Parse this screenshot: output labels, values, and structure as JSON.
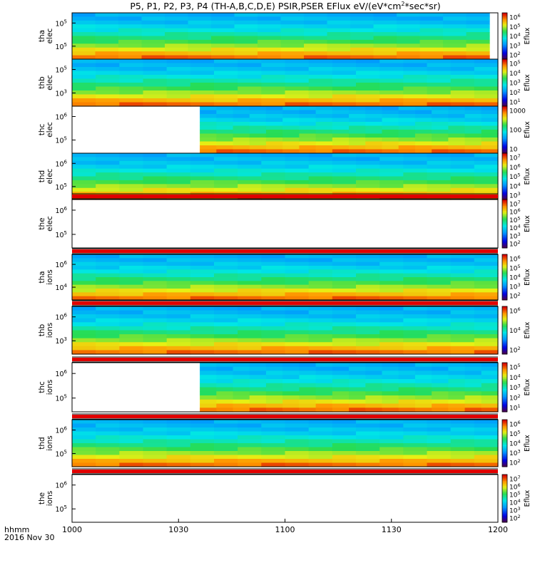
{
  "title": {
    "prefix": "P5, P1, P2, P3, P4 (TH-A,B,C,D,E) PSIR,PSER EFlux eV/(eV*cm",
    "sup": "2",
    "suffix": "*sec*sr)"
  },
  "time_label": "hhmm",
  "date_label": "2016 Nov 30",
  "chart_data": {
    "type": "heatmap",
    "x_ticks": [
      "1000",
      "1030",
      "1100",
      "1130",
      "1200"
    ],
    "x_range": [
      "10:00",
      "12:00"
    ],
    "colorbar_title": "Eflux",
    "panels": [
      {
        "name": "tha elec",
        "ylabel_top": "tha",
        "ylabel_bottom": "elec",
        "yticks": [
          {
            "base": "10",
            "exp": "5"
          },
          {
            "base": "10",
            "exp": "5"
          }
        ],
        "cbar_ticks": [
          "10",
          "10",
          "10",
          "10",
          "10"
        ],
        "cbar_exps": [
          "6",
          "5",
          "4",
          "3",
          "2"
        ],
        "cbar_plain": [],
        "coverage": [
          0.0,
          0.98
        ],
        "indicator_bar": false,
        "colorbar_palette": "rainbow"
      },
      {
        "name": "thb elec",
        "ylabel_top": "thb",
        "ylabel_bottom": "elec",
        "yticks": [
          {
            "base": "10",
            "exp": "5"
          },
          {
            "base": "10",
            "exp": "3"
          }
        ],
        "cbar_ticks": [
          "10",
          "10",
          "10",
          "10",
          "10"
        ],
        "cbar_exps": [
          "5",
          "4",
          "3",
          "2",
          "1"
        ],
        "cbar_plain": [],
        "coverage": [
          0.0,
          1.0
        ],
        "indicator_bar": false,
        "colorbar_palette": "rainbow"
      },
      {
        "name": "thc elec",
        "ylabel_top": "thc",
        "ylabel_bottom": "elec",
        "yticks": [
          {
            "base": "10",
            "exp": "6"
          },
          {
            "base": "10",
            "exp": "5"
          }
        ],
        "cbar_ticks": [],
        "cbar_exps": [],
        "cbar_plain": [
          "1000",
          "100",
          "10"
        ],
        "coverage": [
          0.3,
          1.0
        ],
        "indicator_bar": false,
        "colorbar_palette": "rainbow"
      },
      {
        "name": "thd elec",
        "ylabel_top": "thd",
        "ylabel_bottom": "elec",
        "yticks": [
          {
            "base": "10",
            "exp": "6"
          },
          {
            "base": "10",
            "exp": "5"
          }
        ],
        "cbar_ticks": [
          "10",
          "10",
          "10",
          "10",
          "10"
        ],
        "cbar_exps": [
          "7",
          "6",
          "5",
          "4",
          "3"
        ],
        "cbar_plain": [],
        "coverage": [
          0.0,
          1.0
        ],
        "indicator_bar": false,
        "colorbar_palette": "rainbow"
      },
      {
        "name": "the elec",
        "ylabel_top": "the",
        "ylabel_bottom": "elec",
        "yticks": [
          {
            "base": "10",
            "exp": "6"
          },
          {
            "base": "10",
            "exp": "5"
          }
        ],
        "cbar_ticks": [
          "10",
          "10",
          "10",
          "10",
          "10",
          "10"
        ],
        "cbar_exps": [
          "7",
          "6",
          "5",
          "4",
          "3",
          "2"
        ],
        "cbar_plain": [],
        "coverage": null,
        "indicator_bar": true,
        "colorbar_palette": "rainbow"
      },
      {
        "name": "tha ions",
        "ylabel_top": "tha",
        "ylabel_bottom": "ions",
        "yticks": [
          {
            "base": "10",
            "exp": "6"
          },
          {
            "base": "10",
            "exp": "4"
          }
        ],
        "cbar_ticks": [
          "10",
          "10",
          "10",
          "10",
          "10"
        ],
        "cbar_exps": [
          "6",
          "5",
          "4",
          "3",
          "2"
        ],
        "cbar_plain": [],
        "coverage": [
          0.0,
          1.0
        ],
        "indicator_bar": true,
        "colorbar_palette": "rainbow"
      },
      {
        "name": "thb ions",
        "ylabel_top": "thb",
        "ylabel_bottom": "ions",
        "yticks": [
          {
            "base": "10",
            "exp": "6"
          },
          {
            "base": "10",
            "exp": "3"
          }
        ],
        "cbar_ticks": [
          "10",
          "10",
          "10"
        ],
        "cbar_exps": [
          "6",
          "4",
          "2"
        ],
        "cbar_plain": [],
        "coverage": [
          0.0,
          1.0
        ],
        "indicator_bar": true,
        "colorbar_palette": "rainbow"
      },
      {
        "name": "thc ions",
        "ylabel_top": "thc",
        "ylabel_bottom": "ions",
        "yticks": [
          {
            "base": "10",
            "exp": "6"
          },
          {
            "base": "10",
            "exp": "5"
          }
        ],
        "cbar_ticks": [
          "10",
          "10",
          "10",
          "10",
          "10"
        ],
        "cbar_exps": [
          "5",
          "4",
          "3",
          "2",
          "1"
        ],
        "cbar_plain": [],
        "coverage": [
          0.3,
          1.0
        ],
        "indicator_bar": true,
        "colorbar_palette": "rainbow"
      },
      {
        "name": "thd ions",
        "ylabel_top": "thd",
        "ylabel_bottom": "ions",
        "yticks": [
          {
            "base": "10",
            "exp": "6"
          },
          {
            "base": "10",
            "exp": "5"
          }
        ],
        "cbar_ticks": [
          "10",
          "10",
          "10",
          "10",
          "10"
        ],
        "cbar_exps": [
          "6",
          "5",
          "4",
          "3",
          "2"
        ],
        "cbar_plain": [],
        "coverage": [
          0.0,
          1.0
        ],
        "indicator_bar": true,
        "colorbar_palette": "rainbow"
      },
      {
        "name": "the ions",
        "ylabel_top": "the",
        "ylabel_bottom": "ions",
        "yticks": [
          {
            "base": "10",
            "exp": "6"
          },
          {
            "base": "10",
            "exp": "5"
          }
        ],
        "cbar_ticks": [
          "10",
          "10",
          "10",
          "10",
          "10",
          "10"
        ],
        "cbar_exps": [
          "7",
          "6",
          "5",
          "4",
          "3",
          "2"
        ],
        "cbar_plain": [],
        "coverage": null,
        "indicator_bar": true,
        "colorbar_palette": "rainbow"
      }
    ]
  }
}
